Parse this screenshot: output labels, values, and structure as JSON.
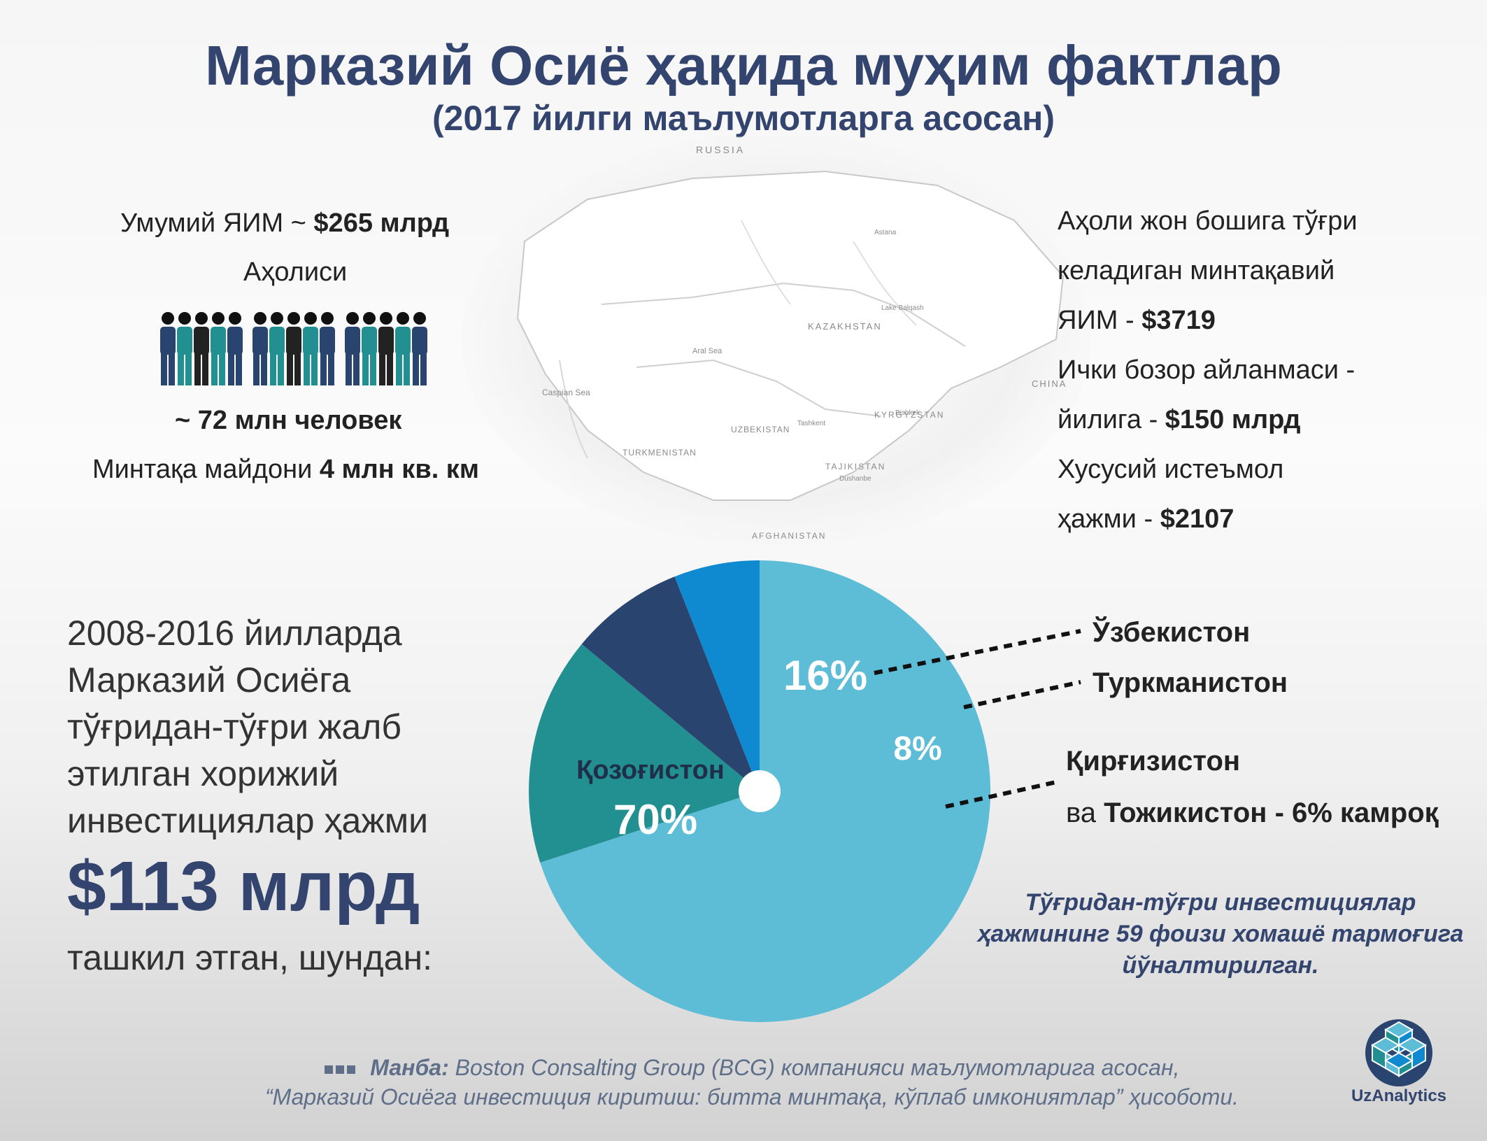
{
  "header": {
    "title": "Марказий Осиё  ҳақида муҳим фактлар",
    "subtitle": "(2017 йилги маълумотларга асосан)"
  },
  "left_stats": {
    "gdp_label": "Умумий ЯИМ  ~ ",
    "gdp_value": "$265 млрд",
    "population_label": "Аҳолиси",
    "population_value": "~ 72 млн человек",
    "area_label": "Минтақа майдони ",
    "area_value": "4 млн кв. км"
  },
  "right_stats": {
    "line1": "Аҳоли жон бошига тўғри",
    "line2": "келадиган минтақавий",
    "line3_label": "ЯИМ - ",
    "line3_value": "$3719",
    "line4": "Ички  бозор айланмаси -",
    "line5_label": "йилига  - ",
    "line5_value": "$150 млрд",
    "line6": "Хусусий истеъмол",
    "line7_label": "ҳажми  - ",
    "line7_value": "$2107"
  },
  "map": {
    "labels": [
      "RUSSIA",
      "KAZAKHSTAN",
      "CHINA",
      "Caspian Sea",
      "Aral Sea",
      "UZBEKISTAN",
      "TURKMENISTAN",
      "KYRGYZSTAN",
      "TAJIKISTAN",
      "AFGHANISTAN",
      "Astana",
      "Bishkek",
      "Tashkent",
      "Dushanbe",
      "Lake Balqash"
    ]
  },
  "fdi": {
    "lines": [
      "2008-2016 йилларда",
      "Марказий Осиёга",
      "тўғридан-тўғри жалб",
      "этилган хорижий",
      "инвестициялар ҳажми"
    ],
    "amount": "$113 млрд",
    "tail": "ташкил этган, шундан:"
  },
  "chart_data": {
    "type": "pie",
    "slices": [
      {
        "name": "Қозоғистон",
        "value": 70,
        "label": "70%",
        "color": "#5dbcd6"
      },
      {
        "name": "Ўзбекистон",
        "value": 16,
        "label": "16%",
        "color": "#228f90"
      },
      {
        "name": "Туркманистон",
        "value": 8,
        "label": "8%",
        "color": "#2a4470"
      },
      {
        "name": "Қирғизистон ва Тожикистон",
        "value": 6,
        "label": "",
        "color": "#0f8ad0"
      }
    ]
  },
  "pie_labels": {
    "uzbekistan": "Ўзбекистон",
    "turkmenistan": "Туркманистон",
    "kyrgyzstan": "Қирғизистон",
    "tajik_prefix": "ва ",
    "tajik_rest": "Тожикистон - 6% камроқ"
  },
  "note": "Тўғридан-тўғри  инвестициялар ҳажмининг 59 фоизи  хомашё тармоғига йўналтирилган.",
  "source": {
    "label": "Манба:",
    "line1": " Boston Consalting Group (BCG) компанияси маълумотларига асосан,",
    "line2": "“Марказий Осиёга инвестиция киритиш: битта минтақа, кўплаб имкониятлар” ҳисоботи."
  },
  "logo": {
    "name": "UzAnalytics"
  },
  "colors": {
    "title": "#33456e",
    "teal": "#228f90",
    "navy": "#2a4470",
    "light_blue": "#5dbcd6",
    "blue": "#0f8ad0"
  }
}
